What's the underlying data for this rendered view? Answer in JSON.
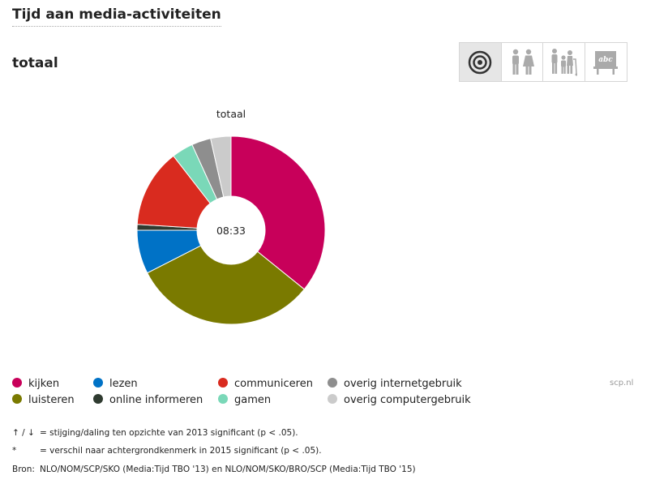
{
  "header": {
    "title": "Tijd aan media-activiteiten",
    "subtitle": "totaal"
  },
  "toolbar": {
    "buttons": [
      {
        "icon": "target-icon",
        "active": true
      },
      {
        "icon": "gender-icon",
        "active": false
      },
      {
        "icon": "age-icon",
        "active": false
      },
      {
        "icon": "education-icon",
        "active": false
      }
    ]
  },
  "chart_data": {
    "type": "pie",
    "variant": "donut",
    "title": "totaal",
    "center_label": "08:33",
    "slices": [
      {
        "label": "kijken",
        "value": 35.8,
        "color": "#c8005a"
      },
      {
        "label": "luisteren",
        "value": 31.7,
        "color": "#7a7a00"
      },
      {
        "label": "lezen",
        "value": 7.5,
        "color": "#0072c6"
      },
      {
        "label": "online informeren",
        "value": 1.0,
        "color": "#2f3b30"
      },
      {
        "label": "communiceren",
        "value": 13.5,
        "color": "#d92b1f"
      },
      {
        "label": "gamen",
        "value": 3.7,
        "color": "#7ad8b8"
      },
      {
        "label": "overig internetgebruik",
        "value": 3.3,
        "color": "#8e8e8e"
      },
      {
        "label": "overig computergebruik",
        "value": 3.5,
        "color": "#cbcbcb"
      }
    ],
    "legend_placement": "bottom"
  },
  "legend": {
    "items": [
      {
        "label": "kijken",
        "color": "#c8005a"
      },
      {
        "label": "luisteren",
        "color": "#7a7a00"
      },
      {
        "label": "lezen",
        "color": "#0072c6"
      },
      {
        "label": "online informeren",
        "color": "#2f3b30"
      },
      {
        "label": "communiceren",
        "color": "#d92b1f"
      },
      {
        "label": "gamen",
        "color": "#7ad8b8"
      },
      {
        "label": "overig internetgebruik",
        "color": "#8e8e8e"
      },
      {
        "label": "overig computergebruik",
        "color": "#cbcbcb"
      }
    ]
  },
  "credit": "scp.nl",
  "notes": [
    {
      "symbol": "↑ / ↓",
      "text": "= stijging/daling ten opzichte van 2013 significant (p < .05)."
    },
    {
      "symbol": "*",
      "text": "= verschil naar achtergrondkenmerk in 2015 significant (p < .05)."
    }
  ],
  "source": {
    "label": "Bron:",
    "text": "NLO/NOM/SCP/SKO (Media:Tijd TBO '13) en NLO/NOM/SKO/BRO/SCP (Media:Tijd TBO '15)"
  }
}
